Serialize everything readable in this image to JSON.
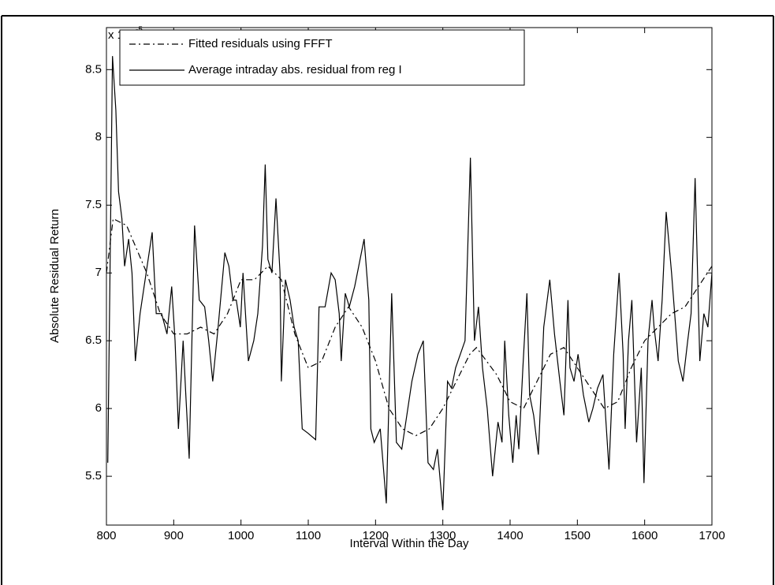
{
  "chart_data": {
    "type": "line",
    "x_label": "Interval Within the Day",
    "y_label": "Absolute Residual Return",
    "y_multiplier": "x 10",
    "y_multiplier_exponent": "-5",
    "xlim": [
      800,
      1700
    ],
    "xticks": [
      800,
      900,
      1000,
      1100,
      1200,
      1300,
      1400,
      1500,
      1600,
      1700
    ],
    "ylim": [
      5.14,
      8.81
    ],
    "yticks": [
      5.5,
      6,
      6.5,
      7,
      7.5,
      8,
      8.5
    ],
    "grid": false,
    "legend": "upper left",
    "series": [
      {
        "name": "Fitted residuals using FFFT",
        "color": "#000000",
        "dash": true,
        "x": [
          800,
          810,
          830,
          860,
          880,
          900,
          920,
          940,
          960,
          980,
          1000,
          1020,
          1040,
          1060,
          1080,
          1100,
          1120,
          1140,
          1160,
          1180,
          1200,
          1220,
          1240,
          1260,
          1280,
          1300,
          1320,
          1340,
          1350,
          1380,
          1400,
          1420,
          1440,
          1460,
          1480,
          1500,
          1520,
          1540,
          1560,
          1580,
          1600,
          1620,
          1640,
          1660,
          1680,
          1700
        ],
        "values": [
          7.0,
          7.4,
          7.35,
          7.0,
          6.7,
          6.55,
          6.55,
          6.6,
          6.55,
          6.7,
          6.95,
          6.95,
          7.05,
          6.95,
          6.55,
          6.3,
          6.35,
          6.6,
          6.75,
          6.6,
          6.35,
          6.0,
          5.85,
          5.8,
          5.85,
          6.0,
          6.2,
          6.4,
          6.45,
          6.25,
          6.05,
          6.0,
          6.2,
          6.4,
          6.45,
          6.3,
          6.15,
          6.0,
          6.05,
          6.3,
          6.5,
          6.6,
          6.7,
          6.75,
          6.9,
          7.05
        ]
      },
      {
        "name": "Average intraday abs. residual from reg I",
        "color": "#000000",
        "dash": false,
        "x": [
          802,
          806,
          809,
          814,
          818,
          823,
          827,
          833,
          838,
          843,
          850,
          859,
          868,
          874,
          882,
          890,
          897,
          902,
          907,
          914,
          918,
          923,
          931,
          938,
          946,
          952,
          958,
          966,
          976,
          982,
          988,
          993,
          999,
          1003,
          1011,
          1019,
          1025,
          1032,
          1036,
          1040,
          1046,
          1052,
          1058,
          1060,
          1066,
          1073,
          1079,
          1085,
          1091,
          1099,
          1111,
          1116,
          1125,
          1134,
          1140,
          1146,
          1149,
          1155,
          1161,
          1169,
          1183,
          1190,
          1193,
          1198,
          1207,
          1216,
          1224,
          1231,
          1239,
          1245,
          1254,
          1263,
          1271,
          1278,
          1286,
          1292,
          1300,
          1307,
          1313,
          1319,
          1333,
          1341,
          1347,
          1353,
          1359,
          1366,
          1374,
          1382,
          1388,
          1392,
          1398,
          1404,
          1409,
          1413,
          1419,
          1425,
          1429,
          1435,
          1442,
          1450,
          1459,
          1466,
          1474,
          1480,
          1486,
          1489,
          1495,
          1501,
          1509,
          1517,
          1523,
          1530,
          1538,
          1547,
          1554,
          1562,
          1568,
          1571,
          1576,
          1581,
          1588,
          1595,
          1599,
          1605,
          1611,
          1614,
          1620,
          1626,
          1632,
          1640,
          1650,
          1657,
          1664,
          1669,
          1675,
          1682,
          1688,
          1694,
          1700
        ],
        "values": [
          5.6,
          7.3,
          8.6,
          8.2,
          7.6,
          7.4,
          7.05,
          7.25,
          7.0,
          6.35,
          6.7,
          7.0,
          7.3,
          6.7,
          6.7,
          6.55,
          6.9,
          6.5,
          5.85,
          6.5,
          6.1,
          5.63,
          7.35,
          6.8,
          6.75,
          6.5,
          6.2,
          6.6,
          7.15,
          7.05,
          6.8,
          6.8,
          6.6,
          7.0,
          6.35,
          6.5,
          6.7,
          7.2,
          7.8,
          7.1,
          7.0,
          7.55,
          7.0,
          6.2,
          6.95,
          6.8,
          6.6,
          6.5,
          5.85,
          5.82,
          5.77,
          6.75,
          6.75,
          7.0,
          6.95,
          6.7,
          6.35,
          6.85,
          6.75,
          6.9,
          7.25,
          6.8,
          5.85,
          5.75,
          5.85,
          5.3,
          6.85,
          5.75,
          5.7,
          5.9,
          6.2,
          6.4,
          6.5,
          5.6,
          5.55,
          5.7,
          5.25,
          6.2,
          6.15,
          6.3,
          6.5,
          7.85,
          6.5,
          6.75,
          6.3,
          6.0,
          5.5,
          5.9,
          5.75,
          6.5,
          5.95,
          5.6,
          5.95,
          5.7,
          6.3,
          6.85,
          6.1,
          5.95,
          5.66,
          6.6,
          6.95,
          6.55,
          6.2,
          5.95,
          6.8,
          6.3,
          6.2,
          6.4,
          6.1,
          5.9,
          6.0,
          6.15,
          6.25,
          5.55,
          6.4,
          7.0,
          6.4,
          5.85,
          6.5,
          6.8,
          5.75,
          6.3,
          5.45,
          6.5,
          6.8,
          6.6,
          6.35,
          6.8,
          7.45,
          7.0,
          6.35,
          6.2,
          6.5,
          6.7,
          7.7,
          6.35,
          6.7,
          6.6,
          7.0
        ]
      }
    ]
  }
}
